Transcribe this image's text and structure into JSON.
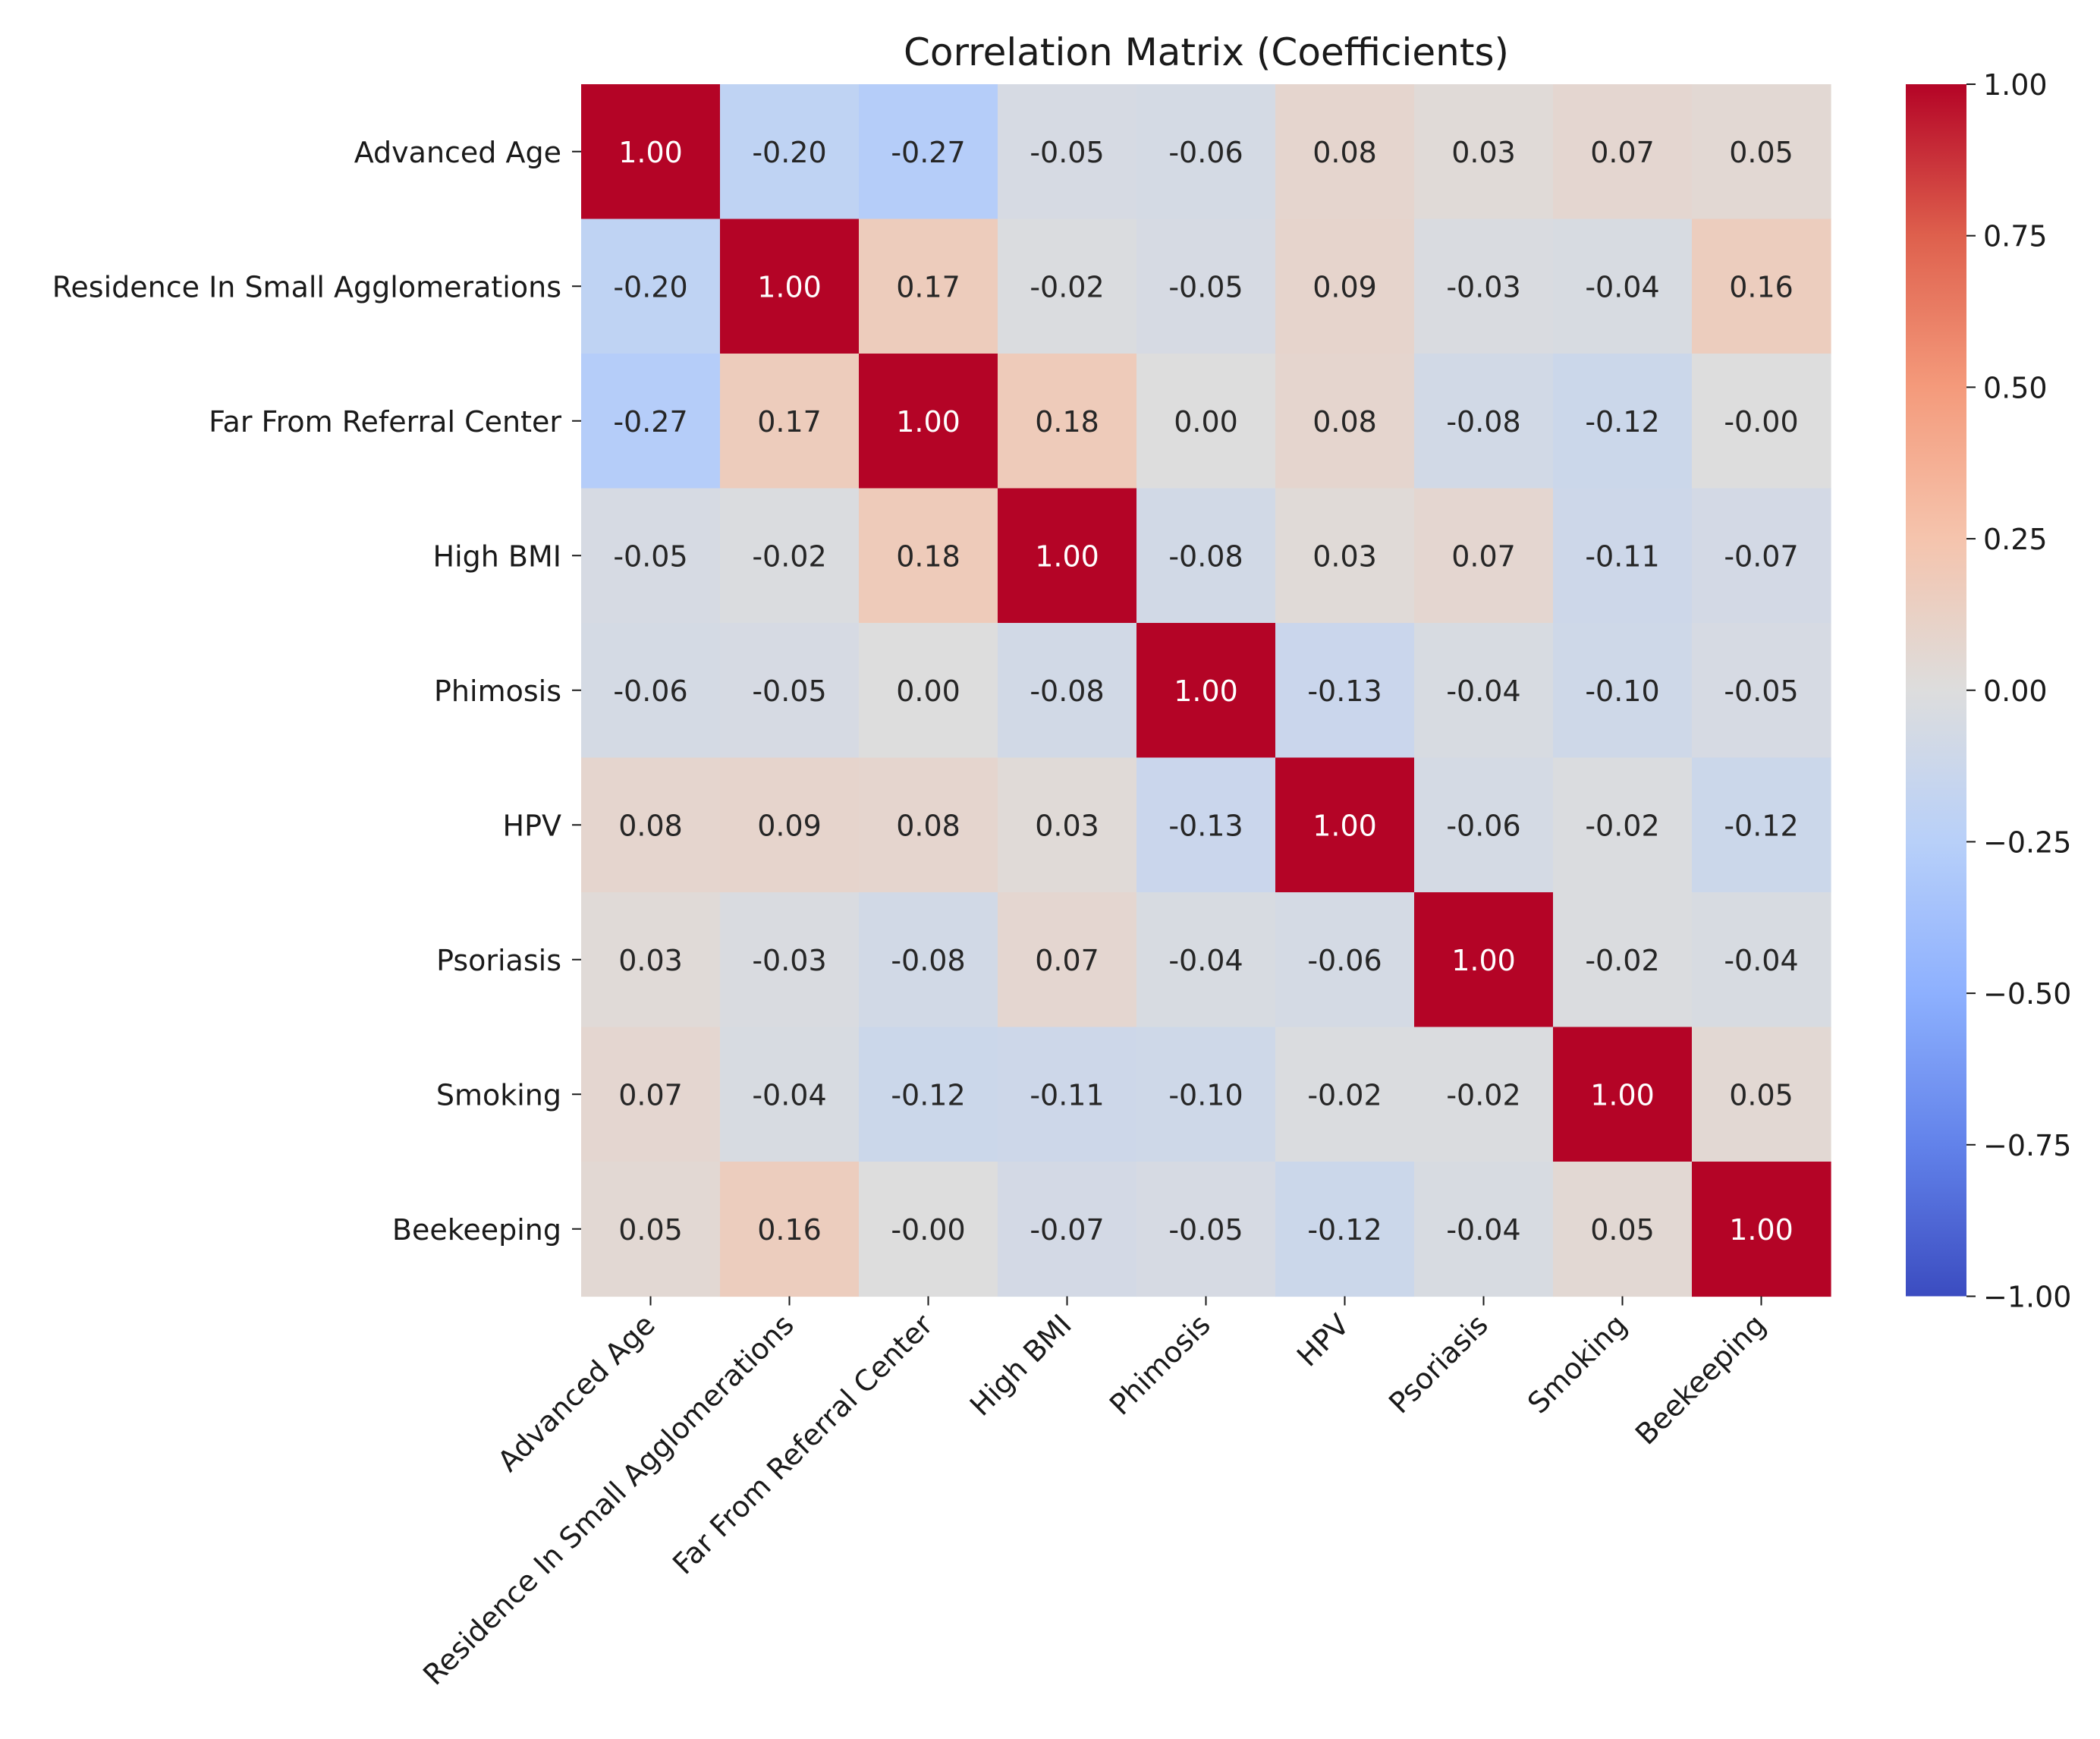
{
  "chart_data": {
    "type": "heatmap",
    "title": "Correlation Matrix (Coefficients)",
    "xlabel": "",
    "ylabel": "",
    "labels": [
      "Advanced Age",
      "Residence In Small Agglomerations",
      "Far From Referral Center",
      "High BMI",
      "Phimosis",
      "HPV",
      "Psoriasis",
      "Smoking",
      "Beekeeping"
    ],
    "matrix": [
      [
        1.0,
        -0.2,
        -0.27,
        -0.05,
        -0.06,
        0.08,
        0.03,
        0.07,
        0.05
      ],
      [
        -0.2,
        1.0,
        0.17,
        -0.02,
        -0.05,
        0.09,
        -0.03,
        -0.04,
        0.16
      ],
      [
        -0.27,
        0.17,
        1.0,
        0.18,
        0.0,
        0.08,
        -0.08,
        -0.12,
        -0.0
      ],
      [
        -0.05,
        -0.02,
        0.18,
        1.0,
        -0.08,
        0.03,
        0.07,
        -0.11,
        -0.07
      ],
      [
        -0.06,
        -0.05,
        0.0,
        -0.08,
        1.0,
        -0.13,
        -0.04,
        -0.1,
        -0.05
      ],
      [
        0.08,
        0.09,
        0.08,
        0.03,
        -0.13,
        1.0,
        -0.06,
        -0.02,
        -0.12
      ],
      [
        0.03,
        -0.03,
        -0.08,
        0.07,
        -0.04,
        -0.06,
        1.0,
        -0.02,
        -0.04
      ],
      [
        0.07,
        -0.04,
        -0.12,
        -0.11,
        -0.1,
        -0.02,
        -0.02,
        1.0,
        0.05
      ],
      [
        0.05,
        0.16,
        -0.0,
        -0.07,
        -0.05,
        -0.12,
        -0.04,
        0.05,
        1.0
      ]
    ],
    "cell_labels": [
      [
        "1.00",
        "-0.20",
        "-0.27",
        "-0.05",
        "-0.06",
        "0.08",
        "0.03",
        "0.07",
        "0.05"
      ],
      [
        "-0.20",
        "1.00",
        "0.17",
        "-0.02",
        "-0.05",
        "0.09",
        "-0.03",
        "-0.04",
        "0.16"
      ],
      [
        "-0.27",
        "0.17",
        "1.00",
        "0.18",
        "0.00",
        "0.08",
        "-0.08",
        "-0.12",
        "-0.00"
      ],
      [
        "-0.05",
        "-0.02",
        "0.18",
        "1.00",
        "-0.08",
        "0.03",
        "0.07",
        "-0.11",
        "-0.07"
      ],
      [
        "-0.06",
        "-0.05",
        "0.00",
        "-0.08",
        "1.00",
        "-0.13",
        "-0.04",
        "-0.10",
        "-0.05"
      ],
      [
        "0.08",
        "0.09",
        "0.08",
        "0.03",
        "-0.13",
        "1.00",
        "-0.06",
        "-0.02",
        "-0.12"
      ],
      [
        "0.03",
        "-0.03",
        "-0.08",
        "0.07",
        "-0.04",
        "-0.06",
        "1.00",
        "-0.02",
        "-0.04"
      ],
      [
        "0.07",
        "-0.04",
        "-0.12",
        "-0.11",
        "-0.10",
        "-0.02",
        "-0.02",
        "1.00",
        "0.05"
      ],
      [
        "0.05",
        "0.16",
        "-0.00",
        "-0.07",
        "-0.05",
        "-0.12",
        "-0.04",
        "0.05",
        "1.00"
      ]
    ],
    "colormap": "coolwarm",
    "vmin": -1.0,
    "vmax": 1.0,
    "colorbar": {
      "ticks": [
        1.0,
        0.75,
        0.5,
        0.25,
        0.0,
        -0.25,
        -0.5,
        -0.75,
        -1.0
      ],
      "tick_labels": [
        "1.00",
        "0.75",
        "0.50",
        "0.25",
        "0.00",
        "−0.25",
        "−0.50",
        "−0.75",
        "−1.00"
      ]
    },
    "legend": "colorbar-right",
    "grid": false
  }
}
